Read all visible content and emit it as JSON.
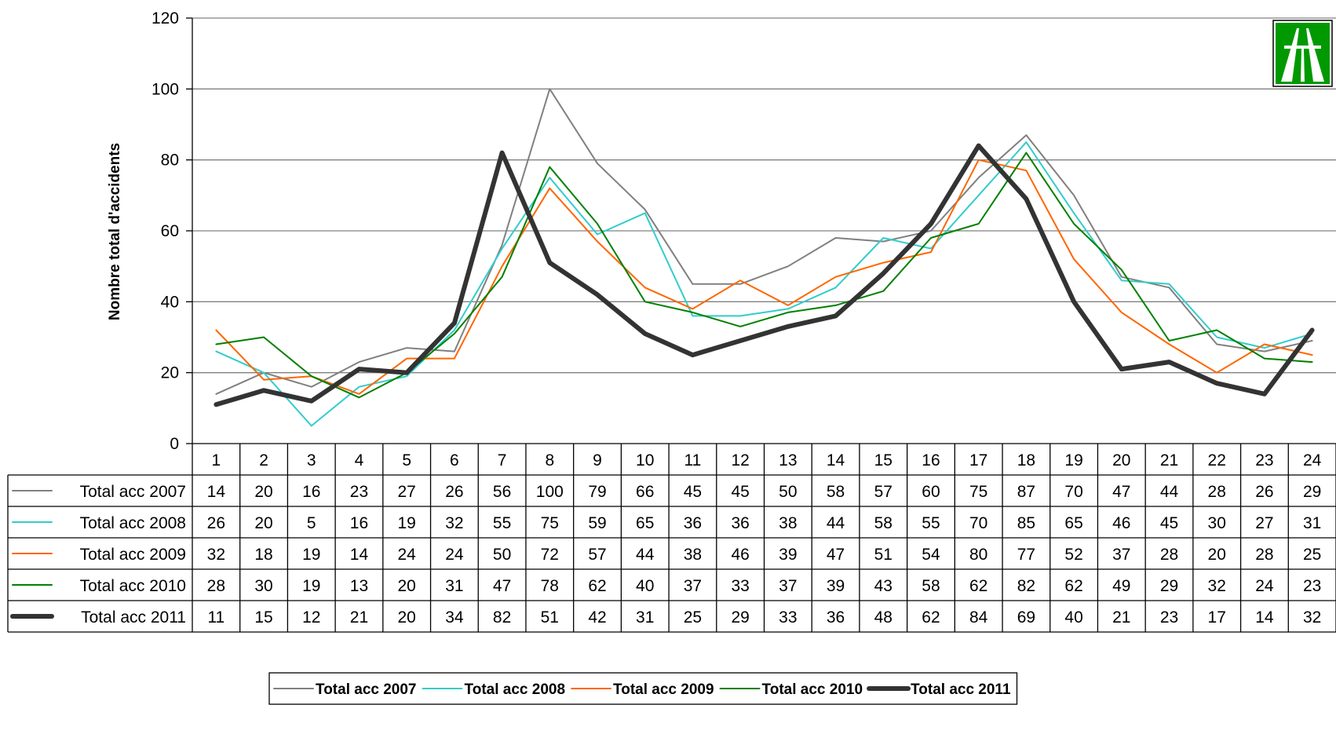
{
  "chart_data": {
    "type": "line",
    "title": "",
    "xlabel": "",
    "ylabel": "Nombre total d'accidents",
    "ylim": [
      0,
      120
    ],
    "yticks": [
      0,
      20,
      40,
      60,
      80,
      100,
      120
    ],
    "grid": true,
    "legend_position": "bottom",
    "categories": [
      "1",
      "2",
      "3",
      "4",
      "5",
      "6",
      "7",
      "8",
      "9",
      "10",
      "11",
      "12",
      "13",
      "14",
      "15",
      "16",
      "17",
      "18",
      "19",
      "20",
      "21",
      "22",
      "23",
      "24"
    ],
    "series": [
      {
        "name": "Total acc 2007",
        "color": "#808080",
        "width": "thin",
        "values": [
          14,
          20,
          16,
          23,
          27,
          26,
          56,
          100,
          79,
          66,
          45,
          45,
          50,
          58,
          57,
          60,
          75,
          87,
          70,
          47,
          44,
          28,
          26,
          29
        ]
      },
      {
        "name": "Total acc 2008",
        "color": "#33cccc",
        "width": "thin",
        "values": [
          26,
          20,
          5,
          16,
          19,
          32,
          55,
          75,
          59,
          65,
          36,
          36,
          38,
          44,
          58,
          55,
          70,
          85,
          65,
          46,
          45,
          30,
          27,
          31
        ]
      },
      {
        "name": "Total acc 2009",
        "color": "#ff6600",
        "width": "thin",
        "values": [
          32,
          18,
          19,
          14,
          24,
          24,
          50,
          72,
          57,
          44,
          38,
          46,
          39,
          47,
          51,
          54,
          80,
          77,
          52,
          37,
          28,
          20,
          28,
          25
        ]
      },
      {
        "name": "Total acc 2010",
        "color": "#008000",
        "width": "thin",
        "values": [
          28,
          30,
          19,
          13,
          20,
          31,
          47,
          78,
          62,
          40,
          37,
          33,
          37,
          39,
          43,
          58,
          62,
          82,
          62,
          49,
          29,
          32,
          24,
          23
        ]
      },
      {
        "name": "Total acc 2011",
        "color": "#333333",
        "width": "thick",
        "values": [
          11,
          15,
          12,
          21,
          20,
          34,
          82,
          51,
          42,
          31,
          25,
          29,
          33,
          36,
          48,
          62,
          84,
          69,
          40,
          21,
          23,
          17,
          14,
          32
        ]
      }
    ]
  },
  "icons": {
    "corner_sign": "motorway-sign-icon",
    "sign_color": "#009900"
  }
}
